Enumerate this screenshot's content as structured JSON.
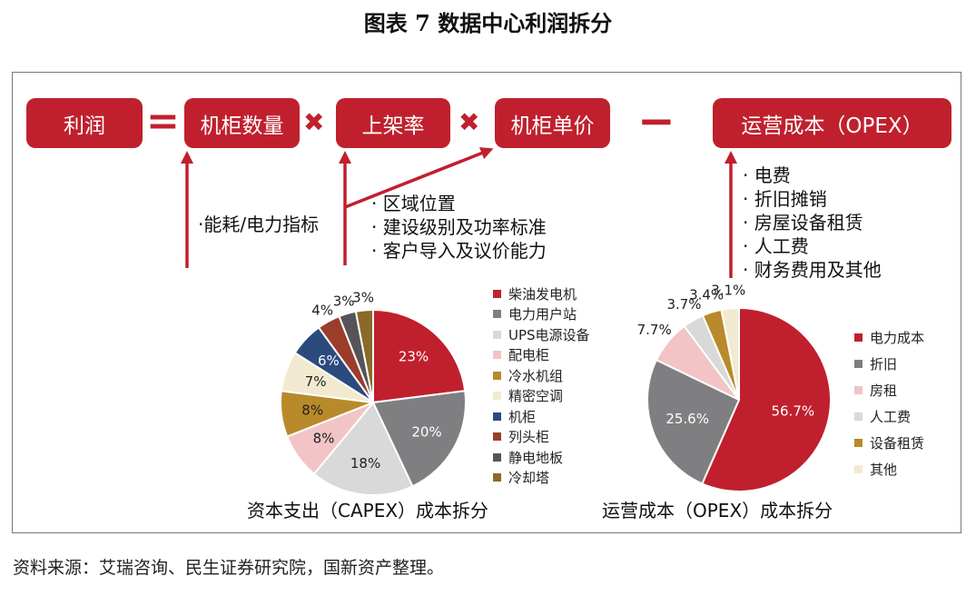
{
  "title": "图表 7  数据中心利润拆分",
  "formula": {
    "profit": "利润",
    "eq": "=",
    "racks": "机柜数量",
    "mul1": "✖",
    "rack_rate": "上架率",
    "mul2": "✖",
    "rack_price": "机柜单价",
    "minus": "−",
    "opex": "运营成本（OPEX）"
  },
  "factors": {
    "racks": [
      "·能耗/电力指标"
    ],
    "shared": [
      "· 区域位置",
      "· 建设级别及功率标准",
      "· 客户导入及议价能力"
    ],
    "opex": [
      "· 电费",
      "· 折旧摊销",
      "· 房屋设备租赁",
      "· 人工费",
      "· 财务费用及其他"
    ]
  },
  "chart_data": [
    {
      "type": "pie",
      "title": "资本支出（CAPEX）成本拆分",
      "categories": [
        "柴油发电机",
        "电力用户站",
        "UPS电源设备",
        "配电柜",
        "冷水机组",
        "精密空调",
        "机柜",
        "列头柜",
        "静电地板",
        "冷却塔"
      ],
      "values": [
        23,
        20,
        18,
        8,
        8,
        7,
        6,
        4,
        3,
        3
      ],
      "labels": [
        "23%",
        "20%",
        "18%",
        "8%",
        "8%",
        "7%",
        "6%",
        "4%",
        "3%",
        "3%"
      ],
      "colors": [
        "#c0202d",
        "#7f7f82",
        "#d9d9d9",
        "#f2c4c6",
        "#b88a2a",
        "#f2ead0",
        "#2b4a7e",
        "#9a3d2a",
        "#555559",
        "#8a6a28"
      ],
      "legend": "right"
    },
    {
      "type": "pie",
      "title": "运营成本（OPEX）成本拆分",
      "categories": [
        "电力成本",
        "折旧",
        "房租",
        "人工费",
        "设备租赁",
        "其他"
      ],
      "values": [
        56.7,
        25.6,
        7.7,
        3.7,
        3.4,
        3.1
      ],
      "labels": [
        "56.7%",
        "25.6%",
        "7.7%",
        "3.7%",
        "3.4%",
        "3.1%"
      ],
      "colors": [
        "#c0202d",
        "#7f7f82",
        "#f2c4c6",
        "#d9d9d9",
        "#b88a2a",
        "#f2ead0"
      ],
      "legend": "right"
    }
  ],
  "source": "资料来源：艾瑞咨询、民生证券研究院，国新资产整理。"
}
